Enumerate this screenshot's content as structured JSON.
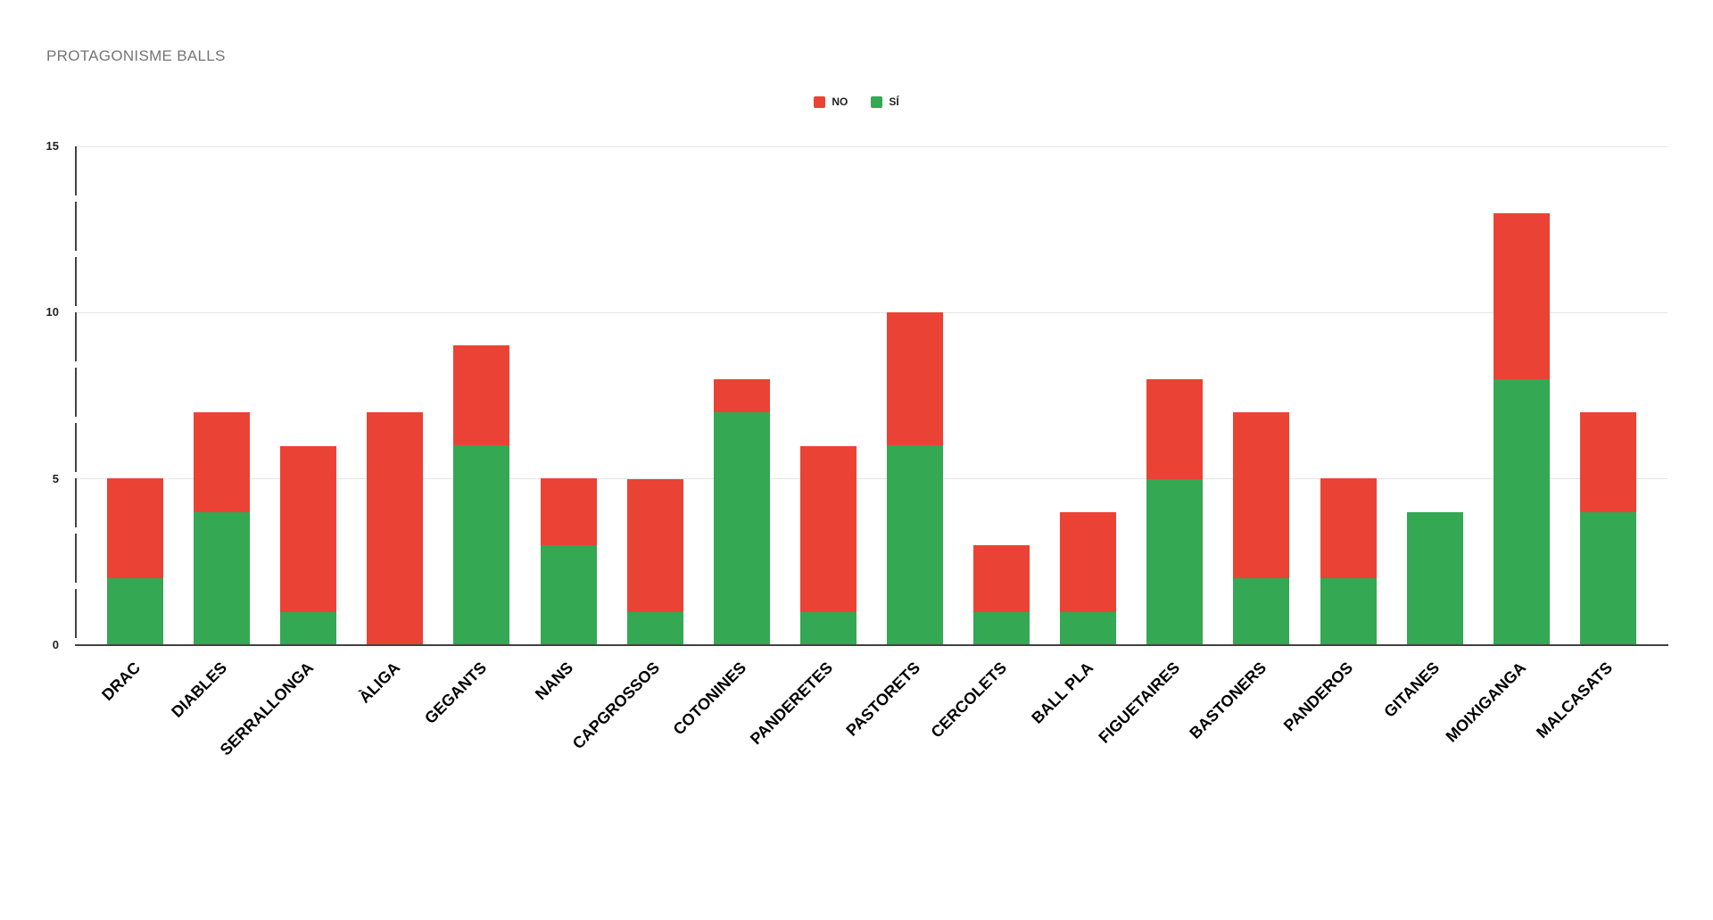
{
  "title": "PROTAGONISME BALLS",
  "legend": {
    "items": [
      {
        "label": "NO",
        "color": "#EA4335"
      },
      {
        "label": "SÍ",
        "color": "#34A853"
      }
    ]
  },
  "colors": {
    "no": "#EA4335",
    "si": "#34A853",
    "title_text": "#757575",
    "gridline": "#E5E5E5",
    "axis": "#424242",
    "tick_text": "#212121",
    "category_text": "#000000"
  },
  "chart_data": {
    "type": "bar",
    "stacked": true,
    "title": "PROTAGONISME BALLS",
    "categories": [
      "DRAC",
      "DIABLES",
      "SERRALLONGA",
      "ÀLIGA",
      "GEGANTS",
      "NANS",
      "CAPGROSSOS",
      "COTONINES",
      "PANDERETES",
      "PASTORETS",
      "CERCOLETS",
      "BALL PLA",
      "FIGUETAIRES",
      "BASTONERS",
      "PANDEROS",
      "GITANES",
      "MOIXIGANGA",
      "MALCASATS"
    ],
    "series": [
      {
        "name": "SÍ",
        "color": "#34A853",
        "values": [
          2,
          4,
          1,
          0,
          6,
          3,
          1,
          7,
          1,
          6,
          1,
          1,
          5,
          2,
          2,
          4,
          8,
          4
        ]
      },
      {
        "name": "NO",
        "color": "#EA4335",
        "values": [
          3,
          3,
          5,
          7,
          3,
          2,
          4,
          1,
          5,
          4,
          2,
          3,
          3,
          5,
          3,
          0,
          5,
          3
        ]
      }
    ],
    "totals": [
      5,
      7,
      6,
      7,
      9,
      5,
      5,
      8,
      6,
      10,
      3,
      4,
      8,
      7,
      5,
      4,
      13,
      7
    ],
    "xlabel": "",
    "ylabel": "",
    "ylim": [
      0,
      15
    ],
    "yticks": [
      0,
      5,
      10,
      15
    ],
    "grid": true,
    "legend_position": "top"
  }
}
